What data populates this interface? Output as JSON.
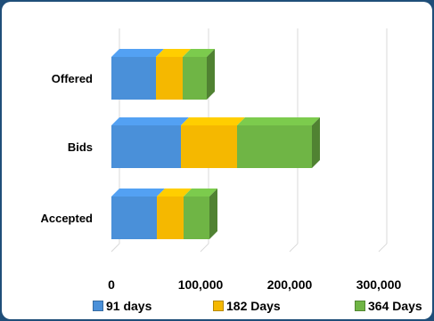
{
  "chart_data": {
    "type": "bar",
    "orientation": "horizontal",
    "stacked": true,
    "style": "3d",
    "categories": [
      "Offered",
      "Bids",
      "Accepted"
    ],
    "series": [
      {
        "name": "91 days",
        "color": "#4a90d9",
        "values": [
          50000,
          78000,
          51000
        ]
      },
      {
        "name": "182 Days",
        "color": "#f5b800",
        "values": [
          30000,
          63000,
          30000
        ]
      },
      {
        "name": "364 Days",
        "color": "#6fb545",
        "values": [
          27000,
          84000,
          29000
        ]
      }
    ],
    "xticks": [
      "0",
      "100,000",
      "200,000",
      "300,000"
    ],
    "xlim": [
      0,
      300000
    ],
    "grid": true,
    "legend_position": "bottom"
  }
}
